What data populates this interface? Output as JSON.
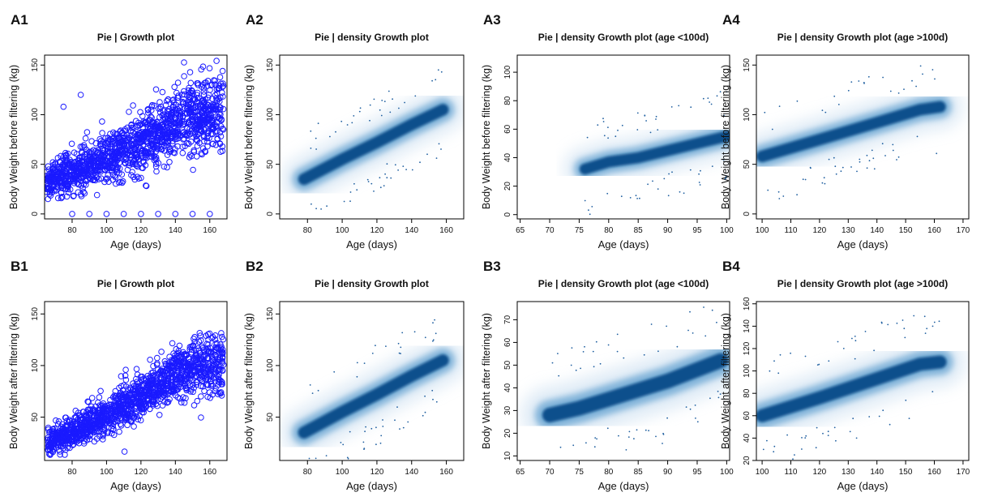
{
  "chart_data": [
    {
      "id": "A1",
      "panel_label": "A1",
      "type": "scatter",
      "style": "points",
      "title": "Pie | Growth plot",
      "xlabel": "Age (days)",
      "ylabel": "Body Weight before filtering (kg)",
      "xlim": [
        64,
        170
      ],
      "ylim": [
        -5,
        160
      ],
      "xticks": [
        80,
        100,
        120,
        140,
        160
      ],
      "yticks": [
        0,
        50,
        100,
        150
      ],
      "trend": {
        "x": [
          65,
          80,
          100,
          120,
          140,
          168
        ],
        "y": [
          35,
          42,
          55,
          72,
          90,
          103
        ]
      },
      "spread_y": 20,
      "outliers": [
        [
          80,
          0
        ],
        [
          90,
          0
        ],
        [
          100,
          0
        ],
        [
          110,
          0
        ],
        [
          120,
          0
        ],
        [
          130,
          0
        ],
        [
          140,
          0
        ],
        [
          150,
          0
        ],
        [
          160,
          0
        ],
        [
          75,
          108
        ],
        [
          85,
          120
        ]
      ]
    },
    {
      "id": "A2",
      "panel_label": "A2",
      "type": "heatmap",
      "style": "density",
      "title": "Pie | density Growth plot",
      "xlabel": "Age (days)",
      "ylabel": "Body Weight before filtering (kg)",
      "xlim": [
        64,
        170
      ],
      "ylim": [
        -5,
        160
      ],
      "xticks": [
        80,
        100,
        120,
        140,
        160
      ],
      "yticks": [
        0,
        50,
        100,
        150
      ],
      "trend": {
        "x": [
          78,
          100,
          120,
          140,
          158
        ],
        "y": [
          35,
          55,
          72,
          90,
          105
        ]
      },
      "spread_y": 9
    },
    {
      "id": "A3",
      "panel_label": "A3",
      "type": "heatmap",
      "style": "density",
      "title": "Pie | density Growth plot (age <100d)",
      "xlabel": "Age (days)",
      "ylabel": "Body Weight before filtering (kg)",
      "xlim": [
        64.5,
        100.5
      ],
      "ylim": [
        -3,
        112
      ],
      "xticks": [
        65,
        70,
        75,
        80,
        85,
        90,
        95,
        100
      ],
      "yticks": [
        0,
        20,
        40,
        60,
        80,
        100
      ],
      "trend": {
        "x": [
          76,
          80,
          85,
          90,
          95,
          100
        ],
        "y": [
          32,
          37,
          40,
          45,
          50,
          55
        ]
      },
      "spread_y": 6
    },
    {
      "id": "A4",
      "panel_label": "A4",
      "type": "heatmap",
      "style": "density",
      "title": "Pie | density Growth plot (age >100d)",
      "xlabel": "Age (days)",
      "ylabel": "Body Weight before filtering (kg)",
      "xlim": [
        98,
        172
      ],
      "ylim": [
        -5,
        160
      ],
      "xticks": [
        100,
        110,
        120,
        130,
        140,
        150,
        160,
        170
      ],
      "yticks": [
        0,
        50,
        100,
        150
      ],
      "trend": {
        "x": [
          100,
          120,
          140,
          155,
          162
        ],
        "y": [
          58,
          75,
          92,
          105,
          108
        ]
      },
      "spread_y": 9
    },
    {
      "id": "B1",
      "panel_label": "B1",
      "type": "scatter",
      "style": "points",
      "title": "Pie | Growth plot",
      "xlabel": "Age (days)",
      "ylabel": "Body Weight after filtering (kg)",
      "xlim": [
        64,
        170
      ],
      "ylim": [
        8,
        162
      ],
      "xticks": [
        80,
        100,
        120,
        140,
        160
      ],
      "yticks": [
        50,
        100,
        150
      ],
      "trend": {
        "x": [
          66,
          80,
          100,
          120,
          140,
          168
        ],
        "y": [
          26,
          36,
          52,
          70,
          90,
          104
        ]
      },
      "spread_y": 15
    },
    {
      "id": "B2",
      "panel_label": "B2",
      "type": "heatmap",
      "style": "density",
      "title": "Pie | density Growth plot",
      "xlabel": "Age (days)",
      "ylabel": "Body Weight after filtering (kg)",
      "xlim": [
        64,
        170
      ],
      "ylim": [
        8,
        162
      ],
      "xticks": [
        80,
        100,
        120,
        140,
        160
      ],
      "yticks": [
        50,
        100,
        150
      ],
      "trend": {
        "x": [
          78,
          100,
          120,
          140,
          158
        ],
        "y": [
          35,
          55,
          72,
          90,
          105
        ]
      },
      "spread_y": 9
    },
    {
      "id": "B3",
      "panel_label": "B3",
      "type": "heatmap",
      "style": "density",
      "title": "Pie | density Growth plot (age <100d)",
      "xlabel": "Age (days)",
      "ylabel": "Body Weight after filtering (kg)",
      "xlim": [
        64.5,
        100.5
      ],
      "ylim": [
        8,
        78
      ],
      "xticks": [
        65,
        70,
        75,
        80,
        85,
        90,
        95,
        100
      ],
      "yticks": [
        10,
        20,
        30,
        40,
        50,
        60,
        70
      ],
      "trend": {
        "x": [
          70,
          75,
          80,
          85,
          90,
          95,
          99
        ],
        "y": [
          28,
          31,
          35,
          39,
          43,
          48,
          52
        ]
      },
      "spread_y": 5
    },
    {
      "id": "B4",
      "panel_label": "B4",
      "type": "heatmap",
      "style": "density",
      "title": "Pie | density Growth plot (age >100d)",
      "xlabel": "Age (days)",
      "ylabel": "Body Weight after filtering (kg)",
      "xlim": [
        98,
        172
      ],
      "ylim": [
        20,
        162
      ],
      "xticks": [
        100,
        110,
        120,
        130,
        140,
        150,
        160,
        170
      ],
      "yticks": [
        20,
        40,
        60,
        80,
        100,
        120,
        140,
        160
      ],
      "trend": {
        "x": [
          100,
          120,
          140,
          155,
          162
        ],
        "y": [
          60,
          76,
          93,
          106,
          108
        ]
      },
      "spread_y": 9
    }
  ]
}
